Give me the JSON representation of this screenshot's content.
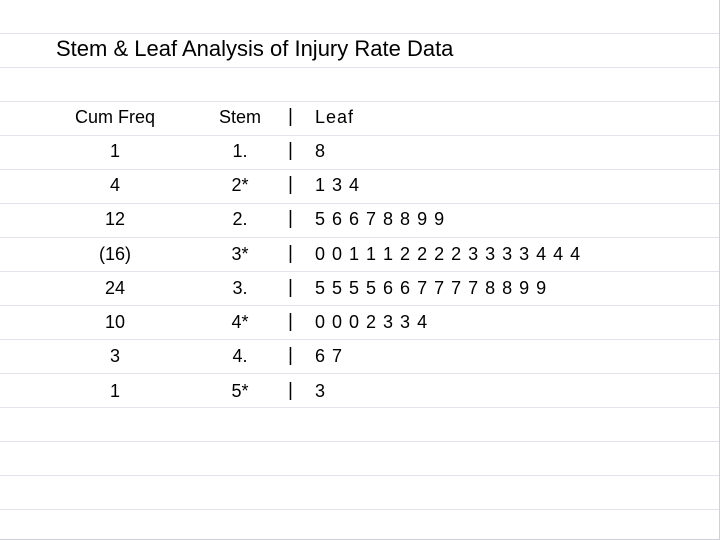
{
  "title": "Stem & Leaf Analysis of Injury Rate Data",
  "headers": {
    "cum_freq": "Cum Freq",
    "stem": "Stem",
    "separator": "|",
    "leaf": "Leaf"
  },
  "rows": [
    {
      "cum_freq": "1",
      "stem": "1.",
      "leaf": "8"
    },
    {
      "cum_freq": "4",
      "stem": "2*",
      "leaf": "1 3 4"
    },
    {
      "cum_freq": "12",
      "stem": "2.",
      "leaf": "5 6 6 7 8 8 9 9"
    },
    {
      "cum_freq": "(16)",
      "stem": "3*",
      "leaf": "0 0 1 1 1 2 2 2 2 3 3 3 3 4 4 4"
    },
    {
      "cum_freq": "24",
      "stem": "3.",
      "leaf": "5 5 5 5 6 6 7 7 7 7 8 8 9 9"
    },
    {
      "cum_freq": "10",
      "stem": "4*",
      "leaf": "0 0 0 2 3 3 4"
    },
    {
      "cum_freq": "3",
      "stem": "4.",
      "leaf": "6 7"
    },
    {
      "cum_freq": "1",
      "stem": "5*",
      "leaf": "3"
    }
  ]
}
